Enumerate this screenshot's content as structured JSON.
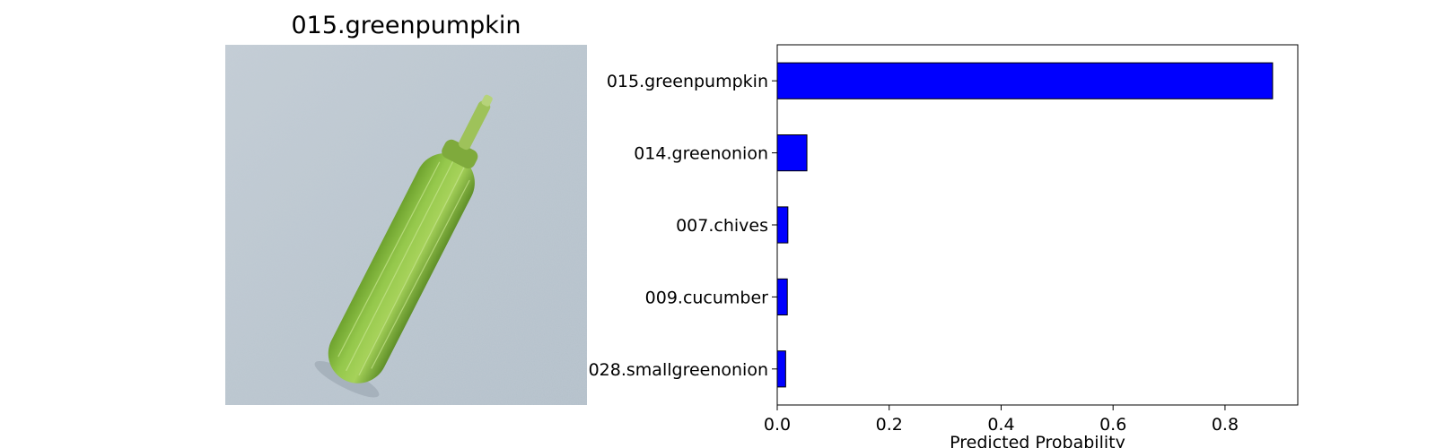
{
  "image_panel": {
    "title": "015.greenpumpkin",
    "icon": "zucchini-photo",
    "colors": {
      "background": "#bcc8d1",
      "vegetable": "#8fc446"
    }
  },
  "chart_data": {
    "type": "bar",
    "orientation": "horizontal",
    "categories": [
      "015.greenpumpkin",
      "014.greenonion",
      "007.chives",
      "009.cucumber",
      "028.smallgreenonion"
    ],
    "values": [
      0.885,
      0.053,
      0.019,
      0.018,
      0.015
    ],
    "xlabel": "Predicted Probability",
    "ylabel": "",
    "xlim": [
      0,
      0.93
    ],
    "xticks": [
      0.0,
      0.2,
      0.4,
      0.6,
      0.8
    ],
    "xtick_labels": [
      "0.0",
      "0.2",
      "0.4",
      "0.6",
      "0.8"
    ],
    "grid": false,
    "bar_color": "#0000ff",
    "bar_edge_color": "#000000"
  }
}
